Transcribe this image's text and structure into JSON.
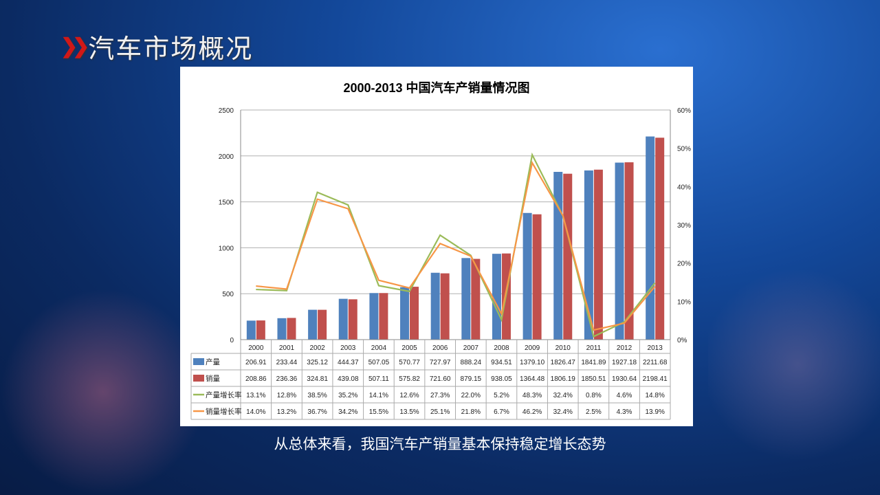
{
  "slide": {
    "title": "汽车市场概况",
    "caption": "从总体来看，我国汽车产销量基本保持稳定增长态势",
    "chevron_icon": "double-chevron-right-icon"
  },
  "chart_data": {
    "type": "bar",
    "title": "2000-2013 中国汽车产销量情况图",
    "categories": [
      "2000",
      "2001",
      "2002",
      "2003",
      "2004",
      "2005",
      "2006",
      "2007",
      "2008",
      "2009",
      "2010",
      "2011",
      "2012",
      "2013"
    ],
    "y_left": {
      "ylim": [
        0,
        2500
      ],
      "ticks": [
        "0",
        "500",
        "1000",
        "1500",
        "2000",
        "2500"
      ]
    },
    "y_right": {
      "ylim": [
        0,
        60
      ],
      "ticks": [
        "0%",
        "10%",
        "20%",
        "30%",
        "40%",
        "50%",
        "60%"
      ]
    },
    "grid": true,
    "legend": "data-table",
    "series": [
      {
        "name": "产量",
        "kind": "bar",
        "axis": "left",
        "color": "#4f81bd",
        "values": [
          206.91,
          233.44,
          325.12,
          444.37,
          507.05,
          570.77,
          727.97,
          888.24,
          934.51,
          1379.1,
          1826.47,
          1841.89,
          1927.18,
          2211.68
        ],
        "labels": [
          "206.91",
          "233.44",
          "325.12",
          "444.37",
          "507.05",
          "570.77",
          "727.97",
          "888.24",
          "934.51",
          "1379.10",
          "1826.47",
          "1841.89",
          "1927.18",
          "2211.68"
        ]
      },
      {
        "name": "销量",
        "kind": "bar",
        "axis": "left",
        "color": "#c0504d",
        "values": [
          208.86,
          236.36,
          324.81,
          439.08,
          507.11,
          575.82,
          721.6,
          879.15,
          938.05,
          1364.48,
          1806.19,
          1850.51,
          1930.64,
          2198.41
        ],
        "labels": [
          "208.86",
          "236.36",
          "324.81",
          "439.08",
          "507.11",
          "575.82",
          "721.60",
          "879.15",
          "938.05",
          "1364.48",
          "1806.19",
          "1850.51",
          "1930.64",
          "2198.41"
        ]
      },
      {
        "name": "产量增长率",
        "kind": "line",
        "axis": "right",
        "color": "#9bbb59",
        "values": [
          13.1,
          12.8,
          38.5,
          35.2,
          14.1,
          12.6,
          27.3,
          22.0,
          5.2,
          48.3,
          32.4,
          0.8,
          4.6,
          14.8
        ],
        "labels": [
          "13.1%",
          "12.8%",
          "38.5%",
          "35.2%",
          "14.1%",
          "12.6%",
          "27.3%",
          "22.0%",
          "5.2%",
          "48.3%",
          "32.4%",
          "0.8%",
          "4.6%",
          "14.8%"
        ]
      },
      {
        "name": "销量增长率",
        "kind": "line",
        "axis": "right",
        "color": "#f79646",
        "values": [
          14.0,
          13.2,
          36.7,
          34.2,
          15.5,
          13.5,
          25.1,
          21.8,
          6.7,
          46.2,
          32.4,
          2.5,
          4.3,
          13.9
        ],
        "labels": [
          "14.0%",
          "13.2%",
          "36.7%",
          "34.2%",
          "15.5%",
          "13.5%",
          "25.1%",
          "21.8%",
          "6.7%",
          "46.2%",
          "32.4%",
          "2.5%",
          "4.3%",
          "13.9%"
        ]
      }
    ]
  }
}
